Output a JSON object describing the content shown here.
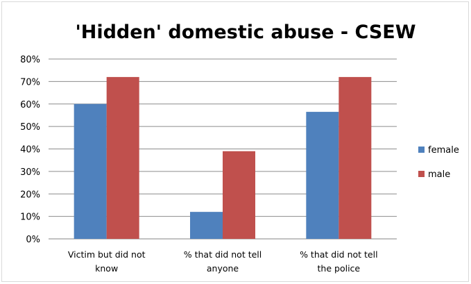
{
  "chart_data": {
    "type": "bar",
    "title": "'Hidden' domestic abuse - CSEW",
    "categories": [
      [
        "Victim but did not",
        "know"
      ],
      [
        "% that did not tell",
        "anyone"
      ],
      [
        "% that did not tell",
        "the police"
      ]
    ],
    "series": [
      {
        "name": "female",
        "color": "#4f81bd",
        "values": [
          60,
          12,
          56.5
        ]
      },
      {
        "name": "male",
        "color": "#c0504d",
        "values": [
          72,
          39,
          72
        ]
      }
    ],
    "ylim": [
      0,
      80
    ],
    "yticks": [
      "0%",
      "10%",
      "20%",
      "30%",
      "40%",
      "50%",
      "60%",
      "70%",
      "80%"
    ],
    "grid": true,
    "legend": "right"
  }
}
